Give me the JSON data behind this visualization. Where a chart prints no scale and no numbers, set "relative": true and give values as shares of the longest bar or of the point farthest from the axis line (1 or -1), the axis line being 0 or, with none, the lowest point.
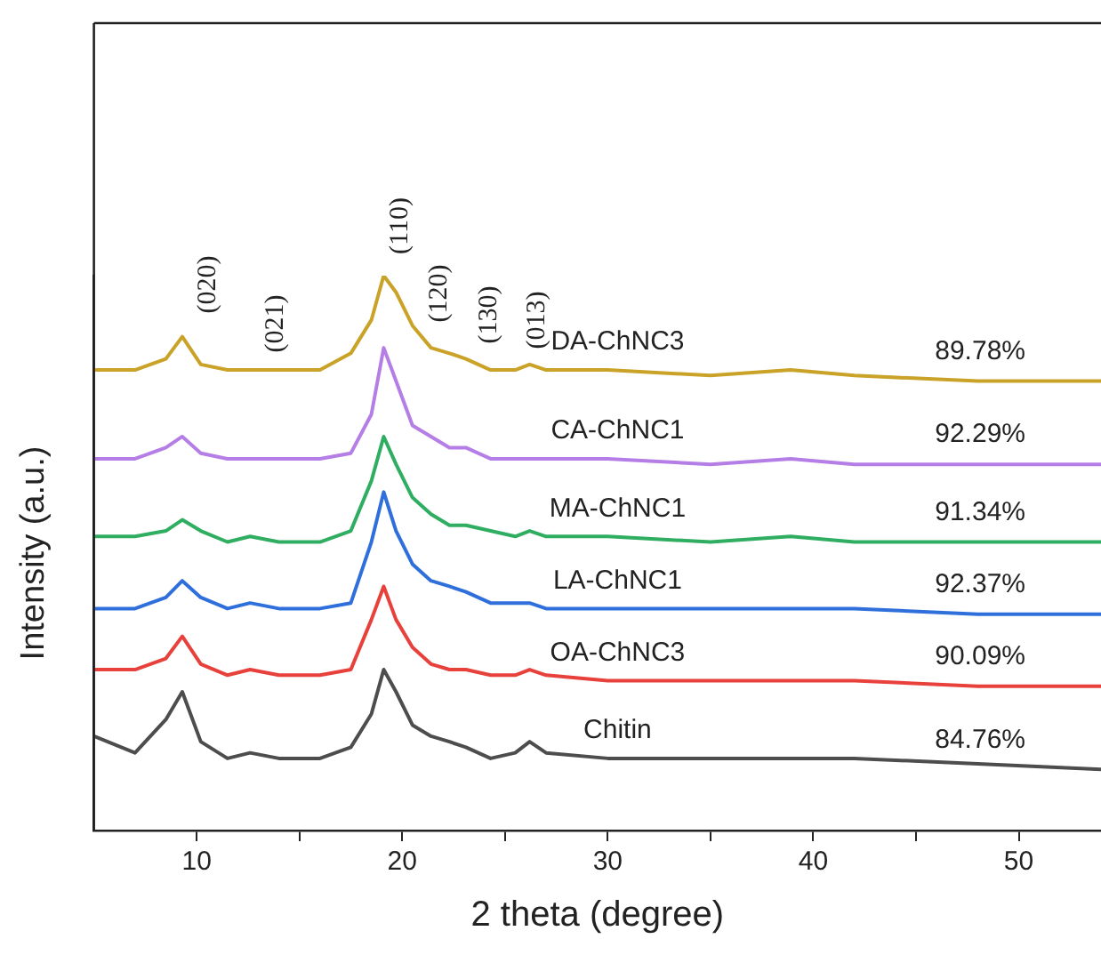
{
  "chart_data": {
    "type": "line",
    "relative": true,
    "xlabel": "2 theta (degree)",
    "ylabel": "Intensity (a.u.)",
    "x": [
      5,
      7,
      8.5,
      9.3,
      10.2,
      11.5,
      12.6,
      14,
      16,
      17.5,
      18.5,
      19.1,
      19.7,
      20.5,
      21.4,
      22.3,
      23.1,
      24.3,
      25.5,
      26.2,
      27,
      30,
      35,
      38.9,
      42,
      48,
      54
    ],
    "xlim": [
      5,
      54
    ],
    "xticks": [
      10,
      {
        "value": 15,
        "label": null
      },
      20,
      {
        "value": 25,
        "label": null
      },
      30,
      {
        "value": 35,
        "label": null
      },
      40,
      {
        "value": 45,
        "label": null
      },
      50
    ],
    "series": [
      {
        "name": "DA-ChNC3",
        "color": "#c9a227",
        "values": [
          0.83,
          0.83,
          0.85,
          0.89,
          0.84,
          0.83,
          0.83,
          0.83,
          0.83,
          0.86,
          0.92,
          1.0,
          0.97,
          0.91,
          0.87,
          0.86,
          0.85,
          0.83,
          0.83,
          0.84,
          0.83,
          0.83,
          0.82,
          0.83,
          0.82,
          0.81,
          0.81
        ]
      },
      {
        "name": "CA-ChNC1",
        "color": "#b57ee6",
        "values": [
          0.67,
          0.67,
          0.69,
          0.71,
          0.68,
          0.67,
          0.67,
          0.67,
          0.67,
          0.68,
          0.75,
          0.87,
          0.81,
          0.73,
          0.71,
          0.69,
          0.69,
          0.67,
          0.67,
          0.67,
          0.67,
          0.67,
          0.66,
          0.67,
          0.66,
          0.66,
          0.66
        ]
      },
      {
        "name": "MA-ChNC1",
        "color": "#2fae62",
        "values": [
          0.53,
          0.53,
          0.54,
          0.56,
          0.54,
          0.52,
          0.53,
          0.52,
          0.52,
          0.54,
          0.63,
          0.71,
          0.66,
          0.6,
          0.57,
          0.55,
          0.55,
          0.54,
          0.53,
          0.54,
          0.53,
          0.53,
          0.52,
          0.53,
          0.52,
          0.52,
          0.52
        ]
      },
      {
        "name": "LA-ChNC1",
        "color": "#2f6fdc",
        "values": [
          0.4,
          0.4,
          0.42,
          0.45,
          0.42,
          0.4,
          0.41,
          0.4,
          0.4,
          0.41,
          0.52,
          0.61,
          0.54,
          0.48,
          0.45,
          0.44,
          0.43,
          0.41,
          0.41,
          0.41,
          0.4,
          0.4,
          0.4,
          0.4,
          0.4,
          0.39,
          0.39
        ]
      },
      {
        "name": "OA-ChNC3",
        "color": "#e8413c",
        "values": [
          0.29,
          0.29,
          0.31,
          0.35,
          0.3,
          0.28,
          0.29,
          0.28,
          0.28,
          0.29,
          0.38,
          0.44,
          0.38,
          0.33,
          0.3,
          0.29,
          0.29,
          0.28,
          0.28,
          0.29,
          0.28,
          0.27,
          0.27,
          0.27,
          0.27,
          0.26,
          0.26
        ]
      },
      {
        "name": "Chitin",
        "color": "#4d4d4d",
        "values": [
          0.17,
          0.14,
          0.2,
          0.25,
          0.16,
          0.13,
          0.14,
          0.13,
          0.13,
          0.15,
          0.21,
          0.29,
          0.25,
          0.19,
          0.17,
          0.16,
          0.15,
          0.13,
          0.14,
          0.16,
          0.14,
          0.13,
          0.13,
          0.13,
          0.13,
          0.12,
          0.11
        ]
      }
    ],
    "annotations": [
      "(020)",
      "(021)",
      "(110)",
      "(120)",
      "(130)",
      "(013)",
      "89.78%",
      "92.29%",
      "91.34%",
      "92.37%",
      "90.09%",
      "84.76%"
    ],
    "legend": false,
    "grid": false,
    "marker": "none",
    "line_style": "solid"
  }
}
